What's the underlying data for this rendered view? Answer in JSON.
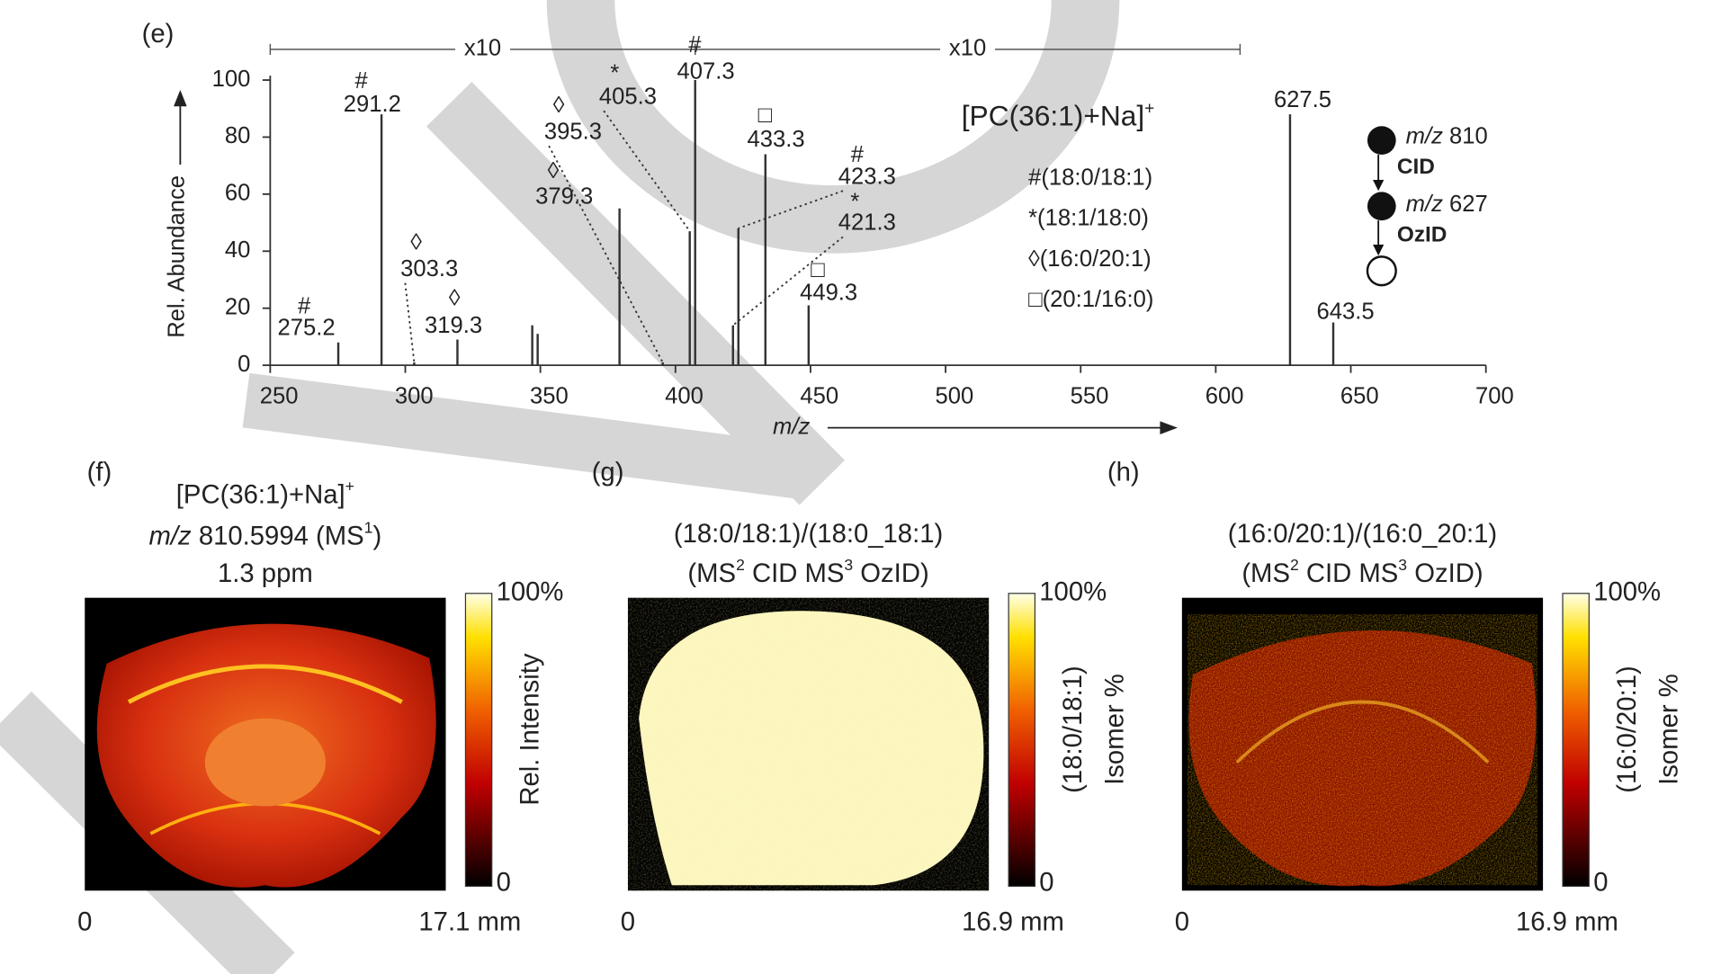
{
  "panel_label_e": "(e)",
  "chart_data": {
    "type": "bar",
    "title": [
      {
        "text": "[PC(36:1)+Na]"
      },
      {
        "text": "+",
        "style": "sup"
      }
    ],
    "x_label": "m/z",
    "y_label": "Rel. Abundance",
    "x": [
      275.2,
      291.2,
      303.3,
      319.3,
      347,
      349,
      379.3,
      395.3,
      405.3,
      407.3,
      421.3,
      423.3,
      433.3,
      449.3,
      627.5,
      643.5
    ],
    "values": [
      8,
      88,
      1,
      9,
      14,
      11,
      55,
      1,
      47,
      100,
      14,
      48,
      74,
      21,
      88,
      15
    ],
    "peak_labels": [
      true,
      true,
      true,
      true,
      false,
      false,
      true,
      true,
      true,
      true,
      true,
      true,
      true,
      true,
      true,
      true
    ],
    "markers": [
      "#",
      "#",
      "◊",
      "◊",
      null,
      null,
      "◊",
      "◊",
      "*",
      "#",
      "*",
      "#",
      "□",
      "□",
      null,
      null
    ],
    "color": "#333333",
    "xlim": [
      250,
      700
    ],
    "xticks": [
      250,
      300,
      350,
      400,
      450,
      500,
      550,
      600,
      650,
      700
    ],
    "ylim": [
      0,
      100
    ],
    "yticks": [
      0,
      20,
      40,
      60,
      80,
      100
    ],
    "magnification": [
      {
        "label": "x10",
        "from": 250,
        "to": 407.3
      },
      {
        "label": "x10",
        "from": 407.3,
        "to": 609
      }
    ],
    "legend": [
      "#(18:0/18:1)",
      "*(18:1/18:0)",
      "◊(16:0/20:1)",
      "□(20:1/16:0)"
    ],
    "scheme": {
      "steps": [
        [
          {
            "text": "m/z",
            "style": "italic"
          },
          {
            "text": " 810"
          }
        ],
        [
          {
            "text": "m/z",
            "style": "italic"
          },
          {
            "text": " 627"
          }
        ]
      ],
      "activations": [
        "CID",
        "OzID"
      ]
    }
  },
  "panels": [
    {
      "label": "(f)",
      "title_lines": [
        [
          {
            "text": "[PC(36:1)+Na]"
          },
          {
            "text": "+",
            "style": "sup"
          }
        ],
        [
          {
            "text": "m/z",
            "style": "italic"
          },
          {
            "text": " 810.5994 (MS"
          },
          {
            "text": "1",
            "style": "sup"
          },
          {
            "text": ")"
          }
        ],
        [
          {
            "text": "1.3 ppm"
          }
        ]
      ],
      "colorbar_max": "100%",
      "colorbar_min": "0",
      "colorbar_label": [
        "Rel. Intensity"
      ],
      "scale_start": "0",
      "scale_end": "17.1 mm",
      "image": "intensity"
    },
    {
      "label": "(g)",
      "title_lines": [
        [
          {
            "text": "(18:0/18:1)/(18:0_18:1)"
          }
        ],
        [
          {
            "text": "(MS"
          },
          {
            "text": "2",
            "style": "sup"
          },
          {
            "text": " CID MS"
          },
          {
            "text": "3",
            "style": "sup"
          },
          {
            "text": " OzID)"
          }
        ]
      ],
      "colorbar_max": "100%",
      "colorbar_min": "0",
      "colorbar_label": [
        "(18:0/18:1)",
        "Isomer %"
      ],
      "scale_start": "0",
      "scale_end": "16.9 mm",
      "image": "high"
    },
    {
      "label": "(h)",
      "title_lines": [
        [
          {
            "text": "(16:0/20:1)/(16:0_20:1)"
          }
        ],
        [
          {
            "text": "(MS"
          },
          {
            "text": "2",
            "style": "sup"
          },
          {
            "text": " CID MS"
          },
          {
            "text": "3",
            "style": "sup"
          },
          {
            "text": " OzID)"
          }
        ]
      ],
      "colorbar_max": "100%",
      "colorbar_min": "0",
      "colorbar_label": [
        "(16:0/20:1)",
        "Isomer %"
      ],
      "scale_start": "0",
      "scale_end": "16.9 mm",
      "image": "speckle"
    }
  ]
}
